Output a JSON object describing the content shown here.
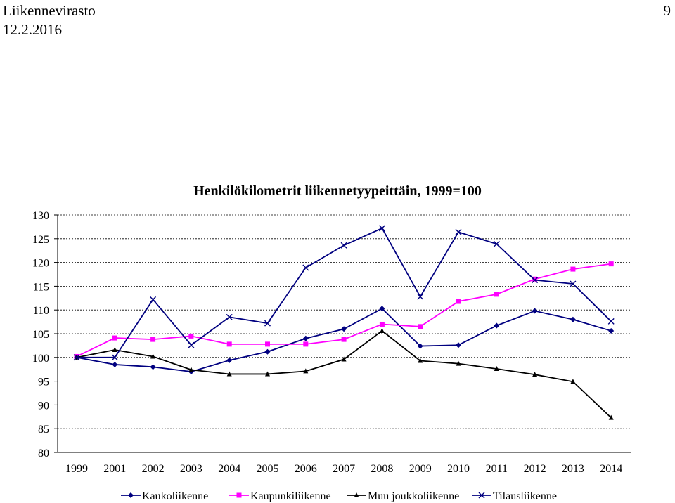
{
  "header": {
    "org": "Liikennevirasto",
    "date": "12.2.2016",
    "page_number": "9"
  },
  "chart_data": {
    "type": "line",
    "title": "Henkilökilometrit liikennetyypeittäin, 1999=100",
    "xlabel": "",
    "ylabel": "",
    "categories": [
      "1999",
      "2001",
      "2002",
      "2003",
      "2004",
      "2005",
      "2006",
      "2007",
      "2008",
      "2009",
      "2010",
      "2011",
      "2012",
      "2013",
      "2014"
    ],
    "ylim": [
      80,
      130
    ],
    "yticks": [
      80,
      85,
      90,
      95,
      100,
      105,
      110,
      115,
      120,
      125,
      130
    ],
    "grid": "horizontal dashed",
    "legend_position": "bottom",
    "series": [
      {
        "name": "Kaukoliikenne",
        "color": "#000080",
        "marker": "diamond",
        "values": [
          100,
          98.5,
          98,
          97,
          99.4,
          101.2,
          104,
          106,
          110.3,
          102.4,
          102.6,
          106.7,
          109.8,
          108,
          105.6
        ]
      },
      {
        "name": "Kaupunkiliikenne",
        "color": "#ff00ff",
        "marker": "square",
        "values": [
          100.2,
          104.1,
          103.8,
          104.5,
          102.8,
          102.8,
          102.8,
          103.8,
          107,
          106.5,
          111.8,
          113.3,
          116.5,
          118.6,
          119.7
        ]
      },
      {
        "name": "Muu joukkoliikenne",
        "color": "#000000",
        "marker": "triangle",
        "values": [
          100,
          101.6,
          100.2,
          97.4,
          96.5,
          96.5,
          97.1,
          99.6,
          105.6,
          99.3,
          98.7,
          97.6,
          96.4,
          94.9,
          87.3
        ]
      },
      {
        "name": "Tilausliikenne",
        "color": "#000080",
        "marker": "x",
        "values": [
          100,
          100,
          112.2,
          102.6,
          108.5,
          107.2,
          118.9,
          123.6,
          127.2,
          112.8,
          126.4,
          123.9,
          116.3,
          115.5,
          107.6
        ]
      }
    ]
  }
}
